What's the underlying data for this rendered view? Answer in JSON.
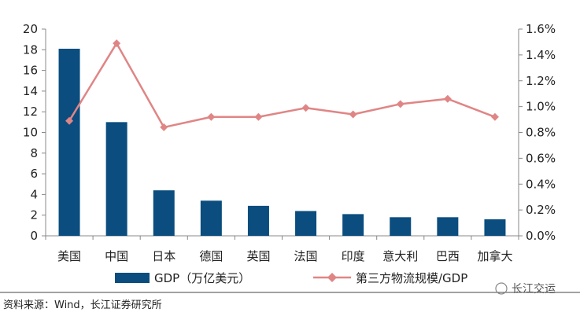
{
  "chart_data": {
    "type": "bar",
    "categories": [
      "美国",
      "中国",
      "日本",
      "德国",
      "英国",
      "法国",
      "印度",
      "意大利",
      "巴西",
      "加拿大"
    ],
    "series": [
      {
        "name": "GDP（万亿美元）",
        "type": "bar",
        "axis": "left",
        "values": [
          18.1,
          11.0,
          4.4,
          3.4,
          2.9,
          2.4,
          2.1,
          1.8,
          1.8,
          1.6
        ]
      },
      {
        "name": "第三方物流规模/GDP",
        "type": "line",
        "axis": "right",
        "values": [
          0.89,
          1.49,
          0.84,
          0.92,
          0.92,
          0.99,
          0.94,
          1.02,
          1.06,
          0.92
        ]
      }
    ],
    "y_left": {
      "min": 0,
      "max": 20,
      "ticks": [
        "0",
        "2",
        "4",
        "6",
        "8",
        "10",
        "12",
        "14",
        "16",
        "18",
        "20"
      ]
    },
    "y_right": {
      "min": 0,
      "max": 1.6,
      "ticks": [
        "0.0%",
        "0.2%",
        "0.4%",
        "0.6%",
        "0.8%",
        "1.0%",
        "1.2%",
        "1.4%",
        "1.6%"
      ]
    },
    "grid": false,
    "legend_position": "bottom",
    "colors": {
      "bar": "#0a4d7e",
      "line": "#e08585",
      "axis": "#888888"
    }
  },
  "footer": {
    "source": "资料来源：Wind，长江证券研究所",
    "watermark": "长江交运"
  }
}
